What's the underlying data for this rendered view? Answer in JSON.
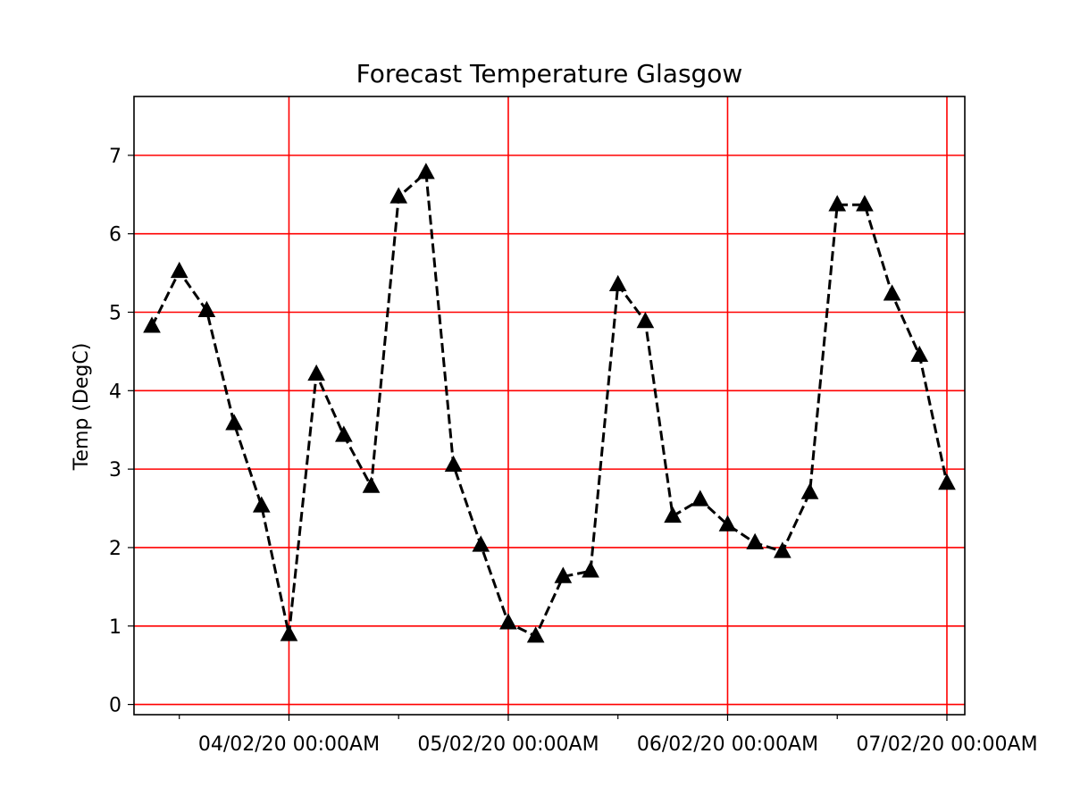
{
  "chart_data": {
    "type": "line",
    "title": "Forecast Temperature Glasgow",
    "xlabel": "",
    "ylabel": "Temp (DegC)",
    "ylim": [
      -0.13,
      7.75
    ],
    "yticks": [
      0,
      1,
      2,
      3,
      4,
      5,
      6,
      7
    ],
    "grid": true,
    "grid_color": "#ff0000",
    "line_color": "#000000",
    "line_style": "dashed",
    "marker": "triangle-up",
    "x_tick_labels": [
      "04/02/20 00:00AM",
      "05/02/20 00:00AM",
      "06/02/20 00:00AM",
      "07/02/20 00:00AM"
    ],
    "x_tick_times": [
      "2020-02-04 00:00",
      "2020-02-05 00:00",
      "2020-02-06 00:00",
      "2020-02-07 00:00"
    ],
    "series": [
      {
        "x": [
          "2020-02-03 09:00",
          "2020-02-03 12:00",
          "2020-02-03 15:00",
          "2020-02-03 18:00",
          "2020-02-03 21:00",
          "2020-02-04 00:00",
          "2020-02-04 03:00",
          "2020-02-04 06:00",
          "2020-02-04 09:00",
          "2020-02-04 12:00",
          "2020-02-04 15:00",
          "2020-02-04 18:00",
          "2020-02-04 21:00",
          "2020-02-05 00:00",
          "2020-02-05 03:00",
          "2020-02-05 06:00",
          "2020-02-05 09:00",
          "2020-02-05 12:00",
          "2020-02-05 15:00",
          "2020-02-05 18:00",
          "2020-02-05 21:00",
          "2020-02-06 00:00",
          "2020-02-06 03:00",
          "2020-02-06 06:00",
          "2020-02-06 09:00",
          "2020-02-06 12:00",
          "2020-02-06 15:00",
          "2020-02-06 18:00",
          "2020-02-06 21:00",
          "2020-02-07 00:00"
        ],
        "values": [
          4.82,
          5.52,
          5.02,
          3.58,
          2.53,
          0.89,
          4.21,
          3.43,
          2.78,
          6.47,
          6.78,
          3.05,
          2.03,
          1.04,
          0.87,
          1.63,
          1.7,
          5.35,
          4.88,
          2.4,
          2.61,
          2.29,
          2.06,
          1.95,
          2.7,
          6.37,
          6.37,
          5.23,
          4.45,
          2.82
        ]
      }
    ]
  }
}
